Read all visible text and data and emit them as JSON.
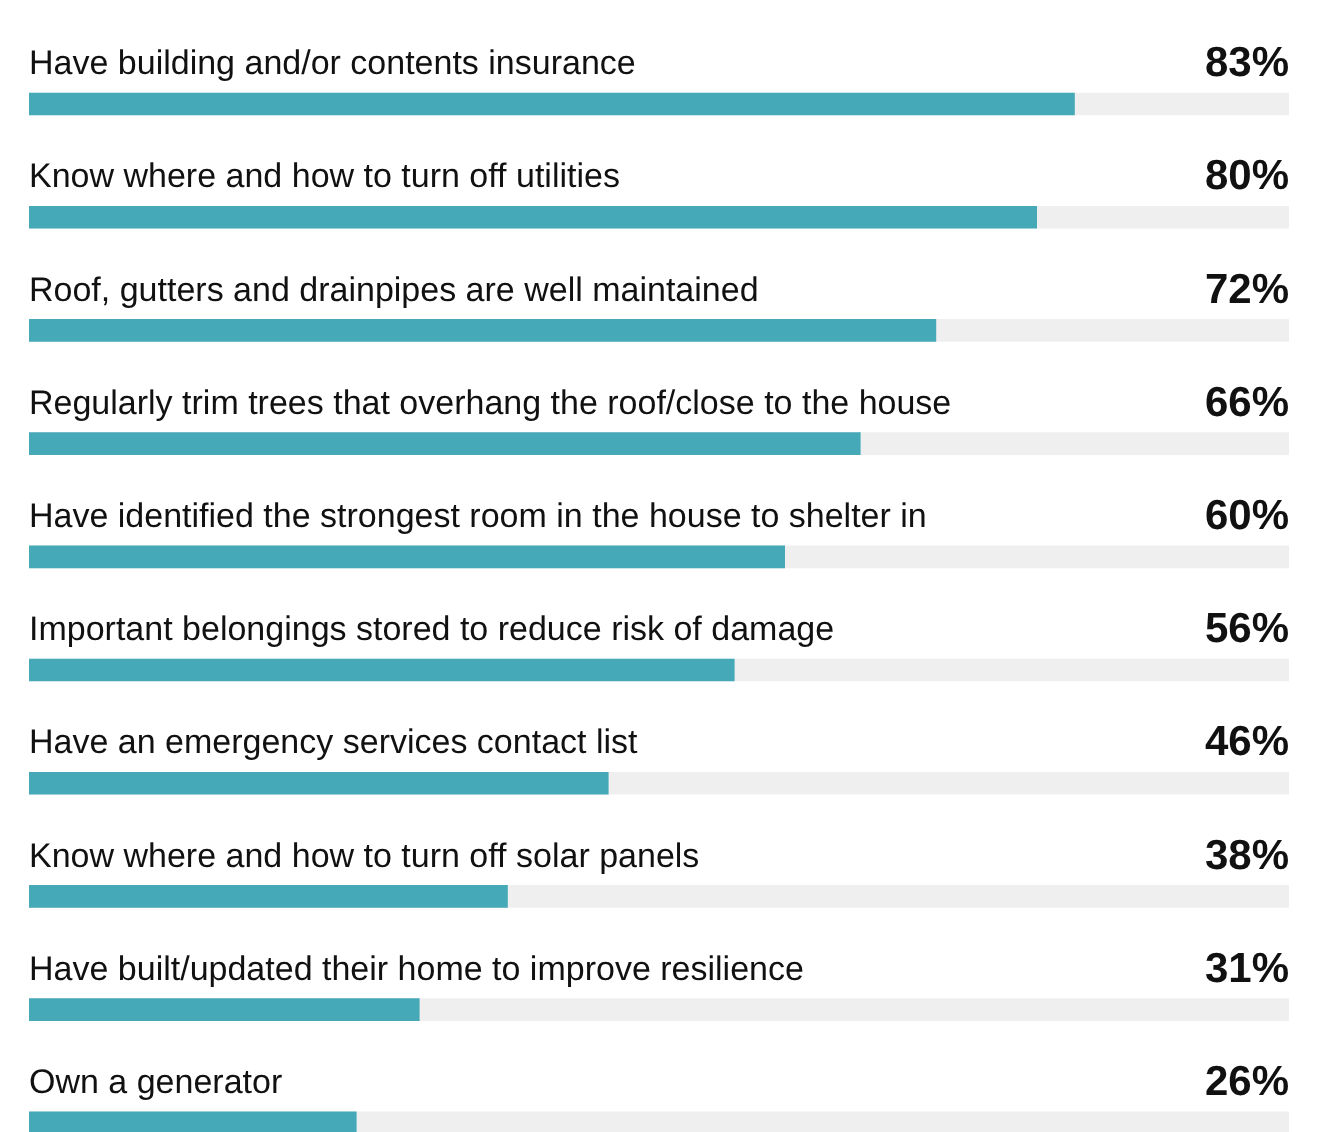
{
  "chart_data": {
    "type": "bar",
    "orientation": "horizontal",
    "categories": [
      "Have building and/or contents insurance",
      "Know where and how to turn off utilities",
      "Roof, gutters and drainpipes are well maintained",
      "Regularly trim trees that overhang the roof/close to the house",
      "Have identified the strongest room in the house to shelter in",
      "Important belongings stored to reduce risk of damage",
      "Have an emergency services contact list",
      "Know where and how to turn off solar panels",
      "Have built/updated their home to improve resilience",
      "Own a generator"
    ],
    "values": [
      83,
      80,
      72,
      66,
      60,
      56,
      46,
      38,
      31,
      26
    ],
    "value_labels": [
      "83%",
      "80%",
      "72%",
      "66%",
      "60%",
      "56%",
      "46%",
      "38%",
      "31%",
      "26%"
    ],
    "color": "#45a9b8",
    "xlim": [
      0,
      100
    ],
    "tick_labels": false
  }
}
